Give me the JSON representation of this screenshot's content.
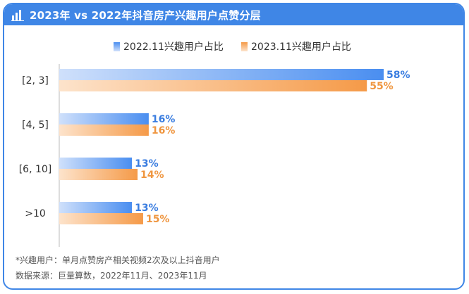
{
  "header": {
    "title": "2023年 vs 2022年抖音房产兴趣用户点赞分层"
  },
  "colors": {
    "title_bg": "#3f86e6",
    "series_2022": "#4a8ef0",
    "series_2022_light": "#cfe0fb",
    "series_2023": "#f59a48",
    "series_2023_light": "#fde3cb",
    "label_2022": "#3a7de0",
    "label_2023": "#ef9640"
  },
  "chart_data": {
    "type": "bar",
    "orientation": "horizontal",
    "categories": [
      "[2, 3]",
      "[4, 5]",
      "[6, 10]",
      ">10"
    ],
    "series": [
      {
        "name": "2022.11兴趣用户占比",
        "values": [
          58,
          16,
          13,
          13
        ],
        "labels": [
          "58%",
          "16%",
          "13%",
          "13%"
        ]
      },
      {
        "name": "2023.11兴趣用户占比",
        "values": [
          55,
          16,
          14,
          15
        ],
        "labels": [
          "55%",
          "16%",
          "14%",
          "15%"
        ]
      }
    ],
    "legend_position": "top",
    "grid": false
  },
  "footnotes": {
    "definition": "*兴趣用户：单月点赞房产相关视频2次及以上抖音用户",
    "source": "数据来源：巨量算数，2022年11月、2023年11月"
  }
}
